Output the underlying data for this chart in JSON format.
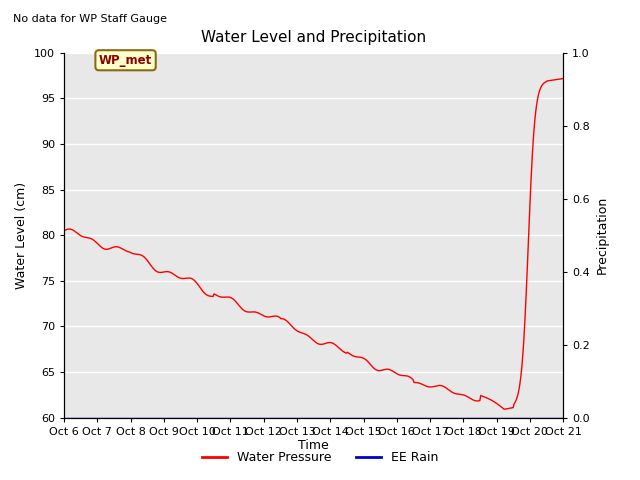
{
  "title": "Water Level and Precipitation",
  "subtitle": "No data for WP Staff Gauge",
  "xlabel": "Time",
  "ylabel_left": "Water Level (cm)",
  "ylabel_right": "Precipitation",
  "legend_label1": "Water Pressure",
  "legend_label2": "EE Rain",
  "legend_box_label": "WP_met",
  "ylim_left": [
    60,
    100
  ],
  "ylim_right": [
    0.0,
    1.0
  ],
  "yticks_left": [
    60,
    65,
    70,
    75,
    80,
    85,
    90,
    95,
    100
  ],
  "yticks_right": [
    0.0,
    0.2,
    0.4,
    0.6,
    0.8,
    1.0
  ],
  "xtick_labels": [
    "Oct 6",
    "Oct 7",
    "Oct 8",
    "Oct 9",
    "Oct 10",
    "Oct 11",
    "Oct 12",
    "Oct 13",
    "Oct 14",
    "Oct 15",
    "Oct 16",
    "Oct 17",
    "Oct 18",
    "Oct 19",
    "Oct 20",
    "Oct 21"
  ],
  "line_color_wp": "#ff0000",
  "line_color_rain": "#0000cc",
  "legend_box_bg": "#ffffcc",
  "legend_box_edge": "#8b6914",
  "legend_box_text": "#8b0000",
  "background_color": "#e8e8e8",
  "figure_bg": "#ffffff",
  "grid_color": "#ffffff"
}
